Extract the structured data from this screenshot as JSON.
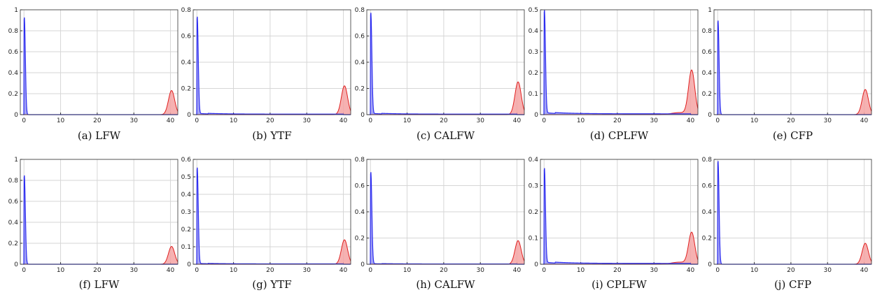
{
  "chart_data": [
    {
      "caption": "(a) LFW",
      "type": "area",
      "ylim": [
        0,
        1
      ],
      "yticks": [
        "0",
        "0.2",
        "0.4",
        "0.6",
        "0.8",
        "1"
      ],
      "xlim": [
        -1,
        42
      ],
      "xticks": [
        "0",
        "10",
        "20",
        "30",
        "40"
      ],
      "grid": true,
      "blue_peak": 0.93,
      "red_peak": 0.23,
      "blue_tail": 0.0,
      "red_tail_left": 0.0
    },
    {
      "caption": "(b) YTF",
      "type": "area",
      "ylim": [
        0,
        0.8
      ],
      "yticks": [
        "0",
        "0.2",
        "0.4",
        "0.6",
        "0.8"
      ],
      "xlim": [
        -1,
        42
      ],
      "xticks": [
        "0",
        "10",
        "20",
        "30",
        "40"
      ],
      "grid": true,
      "blue_peak": 0.74,
      "red_peak": 0.22,
      "blue_tail": 0.01,
      "red_tail_left": 0.0
    },
    {
      "caption": "(c) CALFW",
      "type": "area",
      "ylim": [
        0,
        0.8
      ],
      "yticks": [
        "0",
        "0.2",
        "0.4",
        "0.6",
        "0.8"
      ],
      "xlim": [
        -1,
        42
      ],
      "xticks": [
        "0",
        "10",
        "20",
        "30",
        "40"
      ],
      "grid": true,
      "blue_peak": 0.77,
      "red_peak": 0.25,
      "blue_tail": 0.01,
      "red_tail_left": 0.0
    },
    {
      "caption": "(d) CPLFW",
      "type": "area",
      "ylim": [
        0,
        0.5
      ],
      "yticks": [
        "0",
        "0.1",
        "0.2",
        "0.3",
        "0.4",
        "0.5"
      ],
      "xlim": [
        -1,
        42
      ],
      "xticks": [
        "0",
        "10",
        "20",
        "30",
        "40"
      ],
      "grid": true,
      "blue_peak": 0.49,
      "red_peak": 0.21,
      "blue_tail": 0.01,
      "red_tail_left": 0.01
    },
    {
      "caption": "(e) CFP",
      "type": "area",
      "ylim": [
        0,
        1
      ],
      "yticks": [
        "0",
        "0.2",
        "0.4",
        "0.6",
        "0.8",
        "1"
      ],
      "xlim": [
        -1,
        42
      ],
      "xticks": [
        "0",
        "10",
        "20",
        "30",
        "40"
      ],
      "grid": true,
      "blue_peak": 0.9,
      "red_peak": 0.24,
      "blue_tail": 0.0,
      "red_tail_left": 0.0
    },
    {
      "caption": "(f) LFW",
      "type": "area",
      "ylim": [
        0,
        1
      ],
      "yticks": [
        "0",
        "0.2",
        "0.4",
        "0.6",
        "0.8",
        "1"
      ],
      "xlim": [
        -1,
        42
      ],
      "xticks": [
        "0",
        "10",
        "20",
        "30",
        "40"
      ],
      "grid": true,
      "blue_peak": 0.85,
      "red_peak": 0.17,
      "blue_tail": 0.0,
      "red_tail_left": 0.0
    },
    {
      "caption": "(g) YTF",
      "type": "area",
      "ylim": [
        0,
        0.6
      ],
      "yticks": [
        "0",
        "0.1",
        "0.2",
        "0.3",
        "0.4",
        "0.5",
        "0.6"
      ],
      "xlim": [
        -1,
        42
      ],
      "xticks": [
        "0",
        "10",
        "20",
        "30",
        "40"
      ],
      "grid": true,
      "blue_peak": 0.55,
      "red_peak": 0.14,
      "blue_tail": 0.005,
      "red_tail_left": 0.0
    },
    {
      "caption": "(h) CALFW",
      "type": "area",
      "ylim": [
        0,
        0.8
      ],
      "yticks": [
        "0",
        "0.2",
        "0.4",
        "0.6",
        "0.8"
      ],
      "xlim": [
        -1,
        42
      ],
      "xticks": [
        "0",
        "10",
        "20",
        "30",
        "40"
      ],
      "grid": true,
      "blue_peak": 0.7,
      "red_peak": 0.18,
      "blue_tail": 0.005,
      "red_tail_left": 0.0
    },
    {
      "caption": "(i) CPLFW",
      "type": "area",
      "ylim": [
        0,
        0.4
      ],
      "yticks": [
        "0",
        "0.1",
        "0.2",
        "0.3",
        "0.4"
      ],
      "xlim": [
        -1,
        42
      ],
      "xticks": [
        "0",
        "10",
        "20",
        "30",
        "40"
      ],
      "grid": true,
      "blue_peak": 0.36,
      "red_peak": 0.12,
      "blue_tail": 0.008,
      "red_tail_left": 0.008
    },
    {
      "caption": "(j) CFP",
      "type": "area",
      "ylim": [
        0,
        0.8
      ],
      "yticks": [
        "0",
        "0.2",
        "0.4",
        "0.6",
        "0.8"
      ],
      "xlim": [
        -1,
        42
      ],
      "xticks": [
        "0",
        "10",
        "20",
        "30",
        "40"
      ],
      "grid": true,
      "blue_peak": 0.79,
      "red_peak": 0.16,
      "blue_tail": 0.0,
      "red_tail_left": 0.0
    }
  ],
  "colors": {
    "blue_line": "#2d2df0",
    "blue_fill": "#8f8ff2",
    "red_line": "#e02020",
    "red_fill": "#f5a3a3",
    "grid": "#d6d6d6",
    "axis": "#333333"
  }
}
